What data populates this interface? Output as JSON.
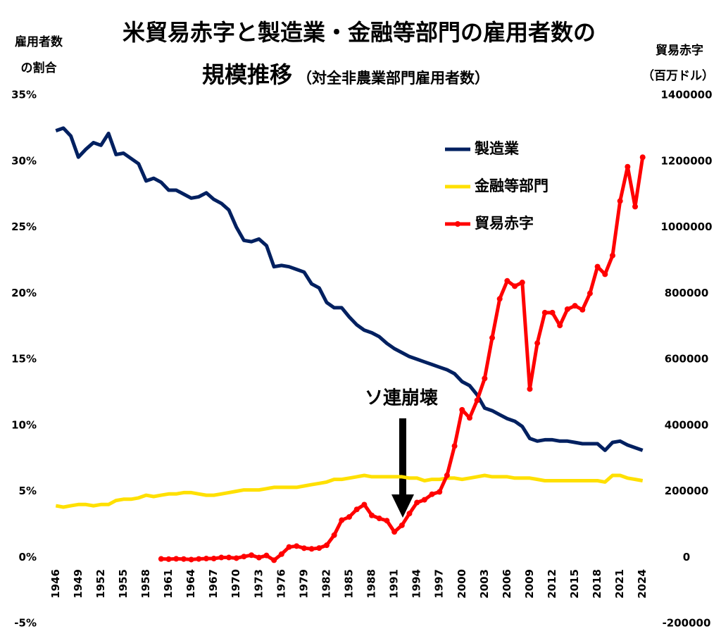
{
  "chart_data": {
    "type": "line",
    "title": [
      "米貿易赤字と製造業・金融等部門の雇用者数の",
      "規模推移"
    ],
    "subtitle": "（対全非農業部門雇用者数）",
    "ylabel": [
      "雇用者数",
      "の割合"
    ],
    "y2label": [
      "貿易赤字",
      "（百万ドル）"
    ],
    "annotation": "ソ連崩壊",
    "x": [
      1946,
      1947,
      1948,
      1949,
      1950,
      1951,
      1952,
      1953,
      1954,
      1955,
      1956,
      1957,
      1958,
      1959,
      1960,
      1961,
      1962,
      1963,
      1964,
      1965,
      1966,
      1967,
      1968,
      1969,
      1970,
      1971,
      1972,
      1973,
      1974,
      1975,
      1976,
      1977,
      1978,
      1979,
      1980,
      1981,
      1982,
      1983,
      1984,
      1985,
      1986,
      1987,
      1988,
      1989,
      1990,
      1991,
      1992,
      1993,
      1994,
      1995,
      1996,
      1997,
      1998,
      1999,
      2000,
      2001,
      2002,
      2003,
      2004,
      2005,
      2006,
      2007,
      2008,
      2009,
      2010,
      2011,
      2012,
      2013,
      2014,
      2015,
      2016,
      2017,
      2018,
      2019,
      2020,
      2021,
      2022,
      2023,
      2024
    ],
    "xlim": [
      1945.6,
      2024.4
    ],
    "xticks": [
      1946,
      1949,
      1952,
      1955,
      1958,
      1961,
      1964,
      1967,
      1970,
      1973,
      1976,
      1979,
      1982,
      1985,
      1988,
      1991,
      1994,
      1997,
      2000,
      2003,
      2006,
      2009,
      2012,
      2015,
      2018,
      2021,
      2024
    ],
    "ylim": [
      -5,
      35
    ],
    "yticks": [
      {
        "value": -5,
        "label": "-5%"
      },
      {
        "value": 0,
        "label": "0%"
      },
      {
        "value": 5,
        "label": "5%"
      },
      {
        "value": 10,
        "label": "10%"
      },
      {
        "value": 15,
        "label": "15%"
      },
      {
        "value": 20,
        "label": "20%"
      },
      {
        "value": 25,
        "label": "25%"
      },
      {
        "value": 30,
        "label": "30%"
      },
      {
        "value": 35,
        "label": "35%"
      }
    ],
    "y2lim": [
      -200000,
      1400000
    ],
    "y2ticks": [
      -200000,
      0,
      200000,
      400000,
      600000,
      800000,
      1000000,
      1200000,
      1400000
    ],
    "legend": "upper right",
    "series": [
      {
        "name": "製造業",
        "color": "#002060",
        "values": [
          32.3,
          32.5,
          31.9,
          30.3,
          30.9,
          31.4,
          31.2,
          32.1,
          30.5,
          30.6,
          30.2,
          29.8,
          28.5,
          28.7,
          28.4,
          27.8,
          27.8,
          27.5,
          27.2,
          27.3,
          27.6,
          27.1,
          26.8,
          26.3,
          25.0,
          24.0,
          23.9,
          24.1,
          23.6,
          22.0,
          22.1,
          22.0,
          21.8,
          21.6,
          20.7,
          20.4,
          19.3,
          18.9,
          18.9,
          18.2,
          17.6,
          17.2,
          17.0,
          16.7,
          16.2,
          15.8,
          15.5,
          15.2,
          15.0,
          14.8,
          14.6,
          14.4,
          14.2,
          13.9,
          13.3,
          13.0,
          12.3,
          11.3,
          11.1,
          10.8,
          10.5,
          10.3,
          9.9,
          9.0,
          8.8,
          8.9,
          8.9,
          8.8,
          8.8,
          8.7,
          8.6,
          8.6,
          8.6,
          8.1,
          8.7,
          8.8,
          8.5,
          8.3,
          8.1
        ]
      },
      {
        "name": "金融等部門",
        "color": "#ffe000",
        "values": [
          3.9,
          3.8,
          3.9,
          4.0,
          4.0,
          3.9,
          4.0,
          4.0,
          4.3,
          4.4,
          4.4,
          4.5,
          4.7,
          4.6,
          4.7,
          4.8,
          4.8,
          4.9,
          4.9,
          4.8,
          4.7,
          4.7,
          4.8,
          4.9,
          5.0,
          5.1,
          5.1,
          5.1,
          5.2,
          5.3,
          5.3,
          5.3,
          5.3,
          5.4,
          5.5,
          5.6,
          5.7,
          5.9,
          5.9,
          6.0,
          6.1,
          6.2,
          6.1,
          6.1,
          6.1,
          6.1,
          6.1,
          6.0,
          6.0,
          5.8,
          5.9,
          5.9,
          6.0,
          6.0,
          5.9,
          6.0,
          6.1,
          6.2,
          6.1,
          6.1,
          6.1,
          6.0,
          6.0,
          6.0,
          5.9,
          5.8,
          5.8,
          5.8,
          5.8,
          5.8,
          5.8,
          5.8,
          5.8,
          5.7,
          6.2,
          6.2,
          6.0,
          5.9,
          5.8
        ]
      },
      {
        "name": "貿易赤字",
        "color": "#ff0000",
        "axis": "y2",
        "markers": true,
        "values": [
          null,
          null,
          null,
          null,
          null,
          null,
          null,
          null,
          null,
          null,
          null,
          null,
          null,
          null,
          -4892,
          -5571,
          -4521,
          -5224,
          -6801,
          -4951,
          -3817,
          -3800,
          -635,
          -607,
          -2603,
          2260,
          6416,
          -911,
          5505,
          -8903,
          9483,
          31091,
          33927,
          27568,
          25500,
          28023,
          36485,
          67102,
          112492,
          122173,
          145081,
          159557,
          126959,
          117749,
          111037,
          76937,
          96897,
          132451,
          165831,
          174170,
          191000,
          198104,
          248221,
          337068,
          446783,
          422370,
          475245,
          541643,
          664766,
          782804,
          837289,
          821196,
          832492,
          509694,
          648678,
          740999,
          741119,
          702245,
          751531,
          761868,
          749801,
          799343,
          880301,
          857258,
          913926,
          1079143,
          1183019,
          1062103,
          1211744
        ]
      }
    ]
  }
}
